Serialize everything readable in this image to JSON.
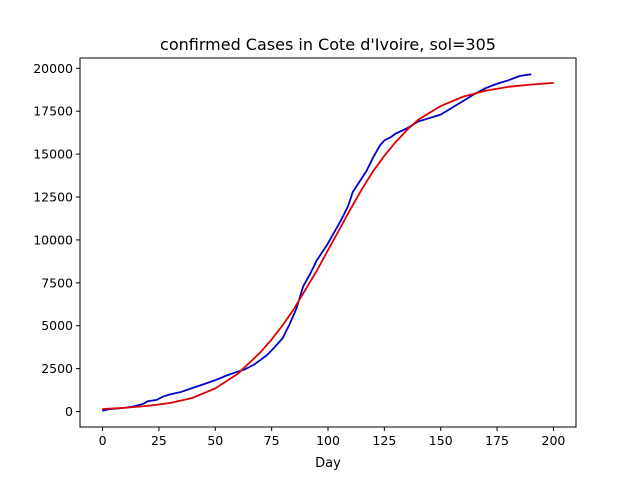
{
  "chart_data": {
    "type": "line",
    "title": "confirmed Cases in Cote d'Ivoire, sol=305",
    "xlabel": "Day",
    "ylabel": "",
    "xlim": [
      -10,
      210
    ],
    "ylim": [
      -900,
      20600
    ],
    "x_ticks": [
      0,
      25,
      50,
      75,
      100,
      125,
      150,
      175,
      200
    ],
    "y_ticks": [
      0,
      2500,
      5000,
      7500,
      10000,
      12500,
      15000,
      17500,
      20000
    ],
    "grid": false,
    "legend": "none",
    "series": [
      {
        "color": "#0000cc",
        "x": [
          0,
          3,
          6,
          10,
          14,
          18,
          20,
          24,
          27,
          30,
          35,
          40,
          45,
          50,
          55,
          60,
          63,
          67,
          70,
          73,
          76,
          80,
          83,
          86,
          89,
          92,
          95,
          97,
          100,
          103,
          106,
          109,
          111,
          114,
          117,
          120,
          123,
          125,
          128,
          130,
          135,
          140,
          145,
          150,
          155,
          160,
          165,
          170,
          175,
          180,
          185,
          190
        ],
        "values": [
          50,
          140,
          170,
          220,
          300,
          450,
          600,
          680,
          880,
          1000,
          1150,
          1380,
          1600,
          1830,
          2100,
          2330,
          2450,
          2720,
          3000,
          3300,
          3700,
          4300,
          5100,
          6000,
          7300,
          8000,
          8800,
          9200,
          9800,
          10500,
          11200,
          12000,
          12800,
          13400,
          14000,
          14800,
          15500,
          15800,
          16000,
          16200,
          16500,
          16900,
          17100,
          17300,
          17700,
          18100,
          18500,
          18850,
          19100,
          19300,
          19550,
          19650
        ]
      },
      {
        "color": "#dd0000",
        "x": [
          0,
          10,
          20,
          30,
          40,
          50,
          60,
          70,
          75,
          80,
          85,
          90,
          95,
          100,
          105,
          110,
          115,
          120,
          125,
          130,
          135,
          140,
          150,
          160,
          170,
          180,
          190,
          200
        ],
        "values": [
          150,
          220,
          330,
          500,
          800,
          1350,
          2200,
          3450,
          4200,
          5050,
          6000,
          7100,
          8200,
          9400,
          10600,
          11800,
          12950,
          14000,
          14900,
          15700,
          16400,
          17000,
          17800,
          18350,
          18700,
          18920,
          19050,
          19150
        ]
      }
    ]
  }
}
